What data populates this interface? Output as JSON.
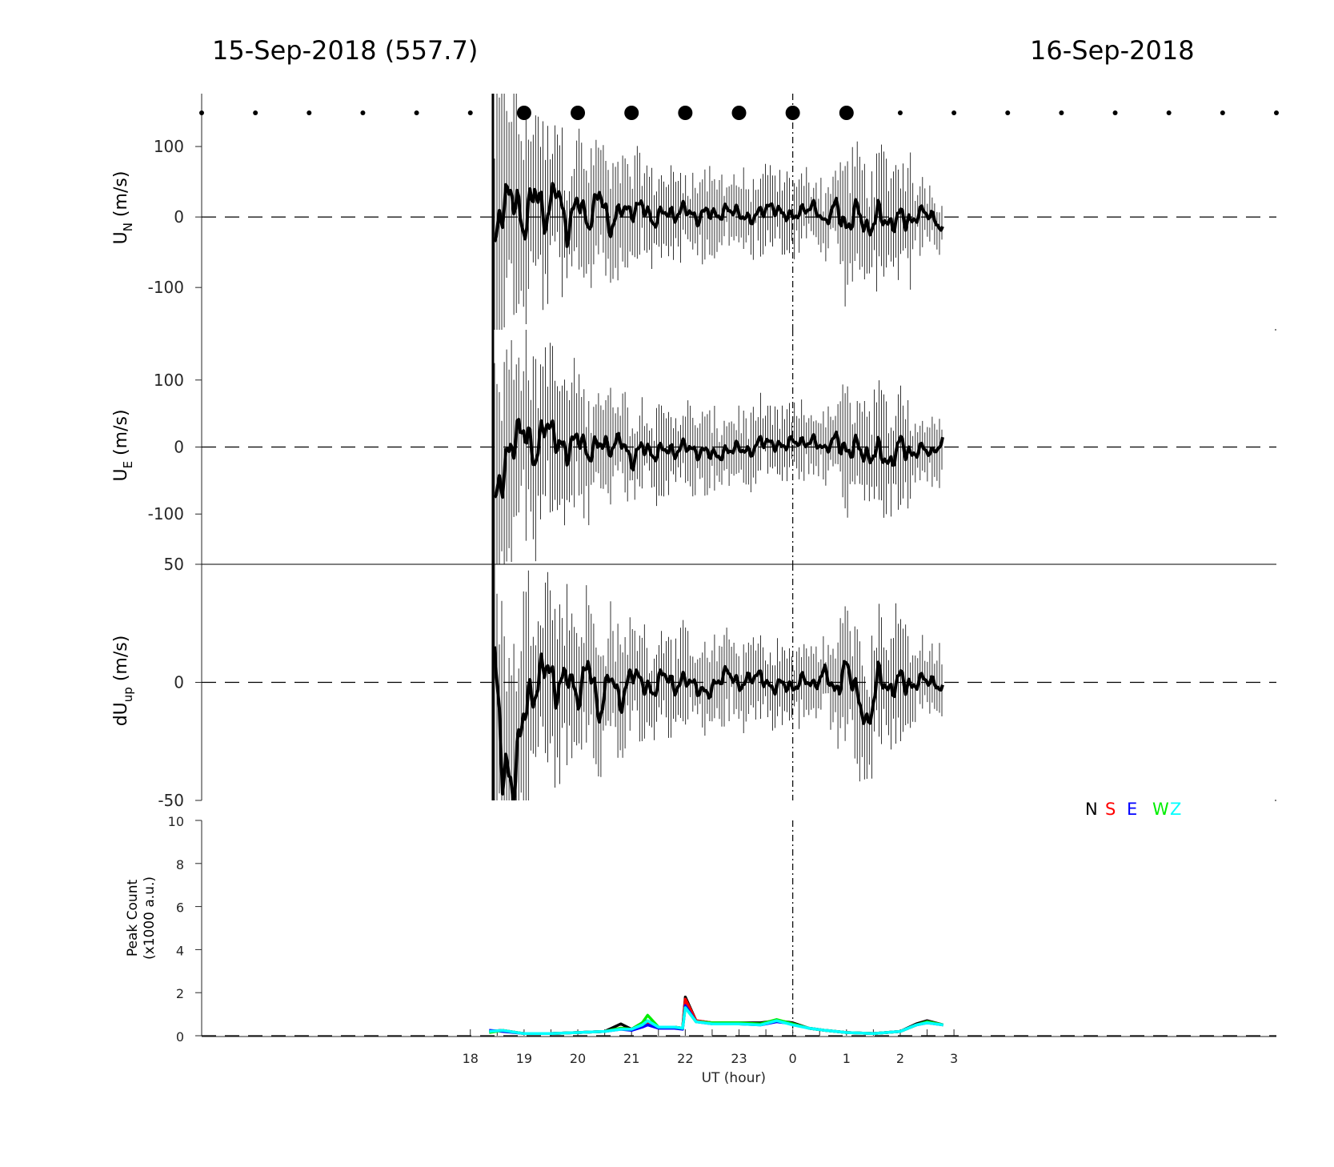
{
  "header": {
    "left": "15-Sep-2018 (557.7)",
    "right": "16-Sep-2018"
  },
  "chart_data": [
    {
      "type": "line",
      "panel": "un",
      "ylabel": "U",
      "ylabel_sub": "N",
      "ylabel_unit": "(m/s)",
      "ylim": [
        -160,
        175
      ],
      "yticks": [
        100,
        0,
        -100
      ],
      "xlim": [
        13.0,
        33.0
      ],
      "series": [
        {
          "name": "",
          "x": [
            18.45,
            18.6,
            18.8,
            19.0,
            19.2,
            19.4,
            19.6,
            19.8,
            20.0,
            20.2,
            20.4,
            20.6,
            20.8,
            21.0,
            21.2,
            21.4,
            21.6,
            21.8,
            22.0,
            22.2,
            22.4,
            22.6,
            22.8,
            23.0,
            23.2,
            23.4,
            23.6,
            23.8,
            24.0,
            24.2,
            24.4,
            24.6,
            24.8,
            25.0,
            25.2,
            25.4,
            25.6,
            25.8,
            26.0,
            26.2,
            26.4,
            26.6,
            26.8
          ],
          "values": [
            -50,
            20,
            35,
            -20,
            45,
            -10,
            50,
            -25,
            30,
            -15,
            40,
            -20,
            15,
            5,
            20,
            -10,
            10,
            0,
            15,
            -5,
            10,
            0,
            12,
            5,
            -5,
            8,
            15,
            5,
            0,
            10,
            15,
            -10,
            20,
            -20,
            15,
            -25,
            10,
            -15,
            5,
            -10,
            10,
            0,
            -20
          ]
        }
      ],
      "hlines": [
        0
      ],
      "vline": 24.0,
      "dots_small": [
        13.0,
        14.0,
        15.0,
        16.0,
        17.0,
        18.0,
        26.0,
        27.0,
        28.0,
        29.0,
        30.0,
        31.0,
        32.0,
        33.0
      ],
      "dots_large": [
        19.0,
        20.0,
        21.0,
        22.0,
        23.0,
        24.0,
        25.0
      ]
    },
    {
      "type": "line",
      "panel": "ue",
      "ylabel": "U",
      "ylabel_sub": "E",
      "ylabel_unit": "(m/s)",
      "ylim": [
        -175,
        175
      ],
      "yticks": [
        100,
        0,
        -100
      ],
      "xlim": [
        13.0,
        33.0
      ],
      "series": [
        {
          "name": "",
          "x": [
            18.45,
            18.6,
            18.8,
            19.0,
            19.2,
            19.4,
            19.6,
            19.8,
            20.0,
            20.2,
            20.4,
            20.6,
            20.8,
            21.0,
            21.2,
            21.4,
            21.6,
            21.8,
            22.0,
            22.2,
            22.4,
            22.6,
            22.8,
            23.0,
            23.2,
            23.4,
            23.6,
            23.8,
            24.0,
            24.2,
            24.4,
            24.6,
            24.8,
            25.0,
            25.2,
            25.4,
            25.6,
            25.8,
            26.0,
            26.2,
            26.4,
            26.6,
            26.8
          ],
          "values": [
            -90,
            -40,
            10,
            30,
            -20,
            40,
            10,
            -10,
            20,
            -15,
            10,
            -5,
            15,
            -25,
            5,
            -15,
            0,
            -10,
            5,
            -10,
            -5,
            -15,
            -5,
            0,
            -10,
            10,
            5,
            0,
            10,
            5,
            10,
            -5,
            15,
            -10,
            5,
            -20,
            0,
            -30,
            10,
            -15,
            0,
            -10,
            10
          ]
        }
      ],
      "hlines": [
        0
      ],
      "vline": 24.0
    },
    {
      "type": "line",
      "panel": "dup",
      "ylabel": "dU",
      "ylabel_sub": "up",
      "ylabel_unit": "(m/s)",
      "ylim": [
        -50,
        50
      ],
      "yticks": [
        50,
        0,
        -50
      ],
      "xlim": [
        13.0,
        33.0
      ],
      "series": [
        {
          "name": "",
          "x": [
            18.45,
            18.6,
            18.8,
            19.0,
            19.2,
            19.4,
            19.6,
            19.8,
            20.0,
            20.2,
            20.4,
            20.6,
            20.8,
            21.0,
            21.2,
            21.4,
            21.6,
            21.8,
            22.0,
            22.2,
            22.4,
            22.6,
            22.8,
            23.0,
            23.2,
            23.4,
            23.6,
            23.8,
            24.0,
            24.2,
            24.4,
            24.6,
            24.8,
            25.0,
            25.2,
            25.4,
            25.6,
            25.8,
            26.0,
            26.2,
            26.4,
            26.6,
            26.8
          ],
          "values": [
            10,
            -35,
            -45,
            -10,
            -5,
            10,
            -5,
            5,
            -8,
            10,
            -15,
            5,
            -10,
            5,
            0,
            -5,
            5,
            -3,
            2,
            -2,
            -5,
            0,
            5,
            -2,
            2,
            3,
            -3,
            0,
            -3,
            2,
            -2,
            5,
            -5,
            8,
            -5,
            -20,
            5,
            -5,
            3,
            -3,
            2,
            0,
            -3
          ]
        }
      ],
      "hlines": [
        0
      ],
      "vline": 24.0
    },
    {
      "type": "line",
      "panel": "pc",
      "ylabel": "Peak Count",
      "ylabel2": "(x1000 a.u.)",
      "xlabel": "UT (hour)",
      "ylim": [
        0,
        10
      ],
      "yticks": [
        10,
        8,
        6,
        4,
        2,
        0
      ],
      "xlim": [
        13.0,
        33.0
      ],
      "xticks": [
        18,
        19,
        20,
        21,
        22,
        23,
        0,
        1,
        2,
        3
      ],
      "legend": {
        "placement": "top-right",
        "items": [
          "N",
          "S",
          "E",
          "W",
          "Z"
        ]
      },
      "colors": {
        "N": "#000000",
        "S": "#ff0000",
        "E": "#0000ff",
        "W": "#00ee00",
        "Z": "#00ffff"
      },
      "series": [
        {
          "name": "N",
          "x": [
            18.35,
            18.6,
            19.0,
            19.5,
            20.0,
            20.5,
            20.8,
            21.0,
            21.2,
            21.3,
            21.5,
            21.8,
            21.95,
            22.0,
            22.2,
            22.5,
            23.0,
            23.4,
            23.7,
            24.0,
            24.3,
            24.6,
            25.0,
            25.5,
            26.0,
            26.3,
            26.5,
            26.8
          ],
          "values": [
            0.2,
            0.25,
            0.1,
            0.1,
            0.15,
            0.2,
            0.55,
            0.3,
            0.6,
            0.7,
            0.4,
            0.4,
            0.35,
            1.8,
            0.7,
            0.6,
            0.6,
            0.6,
            0.7,
            0.6,
            0.35,
            0.25,
            0.15,
            0.1,
            0.2,
            0.55,
            0.7,
            0.5
          ]
        },
        {
          "name": "S",
          "x": [
            18.35,
            18.6,
            19.0,
            19.5,
            20.0,
            20.5,
            20.8,
            21.0,
            21.2,
            21.3,
            21.5,
            21.8,
            21.95,
            22.0,
            22.2,
            22.5,
            23.0,
            23.4,
            23.7,
            24.0,
            24.3,
            24.6,
            25.0,
            25.5,
            26.0,
            26.3,
            26.5,
            26.8
          ],
          "values": [
            0.2,
            0.25,
            0.1,
            0.1,
            0.15,
            0.2,
            0.35,
            0.3,
            0.5,
            0.6,
            0.4,
            0.4,
            0.35,
            1.7,
            0.7,
            0.6,
            0.55,
            0.55,
            0.7,
            0.55,
            0.35,
            0.25,
            0.15,
            0.1,
            0.2,
            0.5,
            0.65,
            0.5
          ]
        },
        {
          "name": "E",
          "x": [
            18.35,
            18.6,
            19.0,
            19.5,
            20.0,
            20.5,
            20.8,
            21.0,
            21.2,
            21.3,
            21.5,
            21.8,
            21.95,
            22.0,
            22.2,
            22.5,
            23.0,
            23.4,
            23.7,
            24.0,
            24.3,
            24.6,
            25.0,
            25.5,
            26.0,
            26.3,
            26.5,
            26.8
          ],
          "values": [
            0.25,
            0.2,
            0.1,
            0.1,
            0.15,
            0.2,
            0.3,
            0.25,
            0.4,
            0.5,
            0.35,
            0.35,
            0.3,
            1.4,
            0.65,
            0.55,
            0.55,
            0.5,
            0.65,
            0.55,
            0.35,
            0.25,
            0.15,
            0.1,
            0.2,
            0.5,
            0.6,
            0.5
          ]
        },
        {
          "name": "W",
          "x": [
            18.35,
            18.6,
            19.0,
            19.5,
            20.0,
            20.5,
            20.8,
            21.0,
            21.2,
            21.3,
            21.5,
            21.8,
            21.95,
            22.0,
            22.2,
            22.5,
            23.0,
            23.4,
            23.7,
            24.0,
            24.3,
            24.6,
            25.0,
            25.5,
            26.0,
            26.3,
            26.5,
            26.8
          ],
          "values": [
            0.15,
            0.25,
            0.1,
            0.1,
            0.15,
            0.2,
            0.35,
            0.3,
            0.6,
            0.95,
            0.4,
            0.4,
            0.35,
            1.3,
            0.65,
            0.6,
            0.6,
            0.55,
            0.75,
            0.55,
            0.35,
            0.25,
            0.15,
            0.1,
            0.2,
            0.5,
            0.65,
            0.5
          ]
        },
        {
          "name": "Z",
          "x": [
            18.35,
            18.6,
            19.0,
            19.5,
            20.0,
            20.5,
            20.8,
            21.0,
            21.2,
            21.3,
            21.5,
            21.8,
            21.95,
            22.0,
            22.2,
            22.5,
            23.0,
            23.4,
            23.7,
            24.0,
            24.3,
            24.6,
            25.0,
            25.5,
            26.0,
            26.3,
            26.5,
            26.8
          ],
          "values": [
            0.2,
            0.25,
            0.1,
            0.1,
            0.15,
            0.2,
            0.3,
            0.3,
            0.5,
            0.7,
            0.4,
            0.4,
            0.35,
            1.3,
            0.65,
            0.55,
            0.55,
            0.5,
            0.7,
            0.5,
            0.35,
            0.25,
            0.15,
            0.1,
            0.2,
            0.5,
            0.6,
            0.5
          ]
        }
      ],
      "vline": 24.0
    }
  ]
}
